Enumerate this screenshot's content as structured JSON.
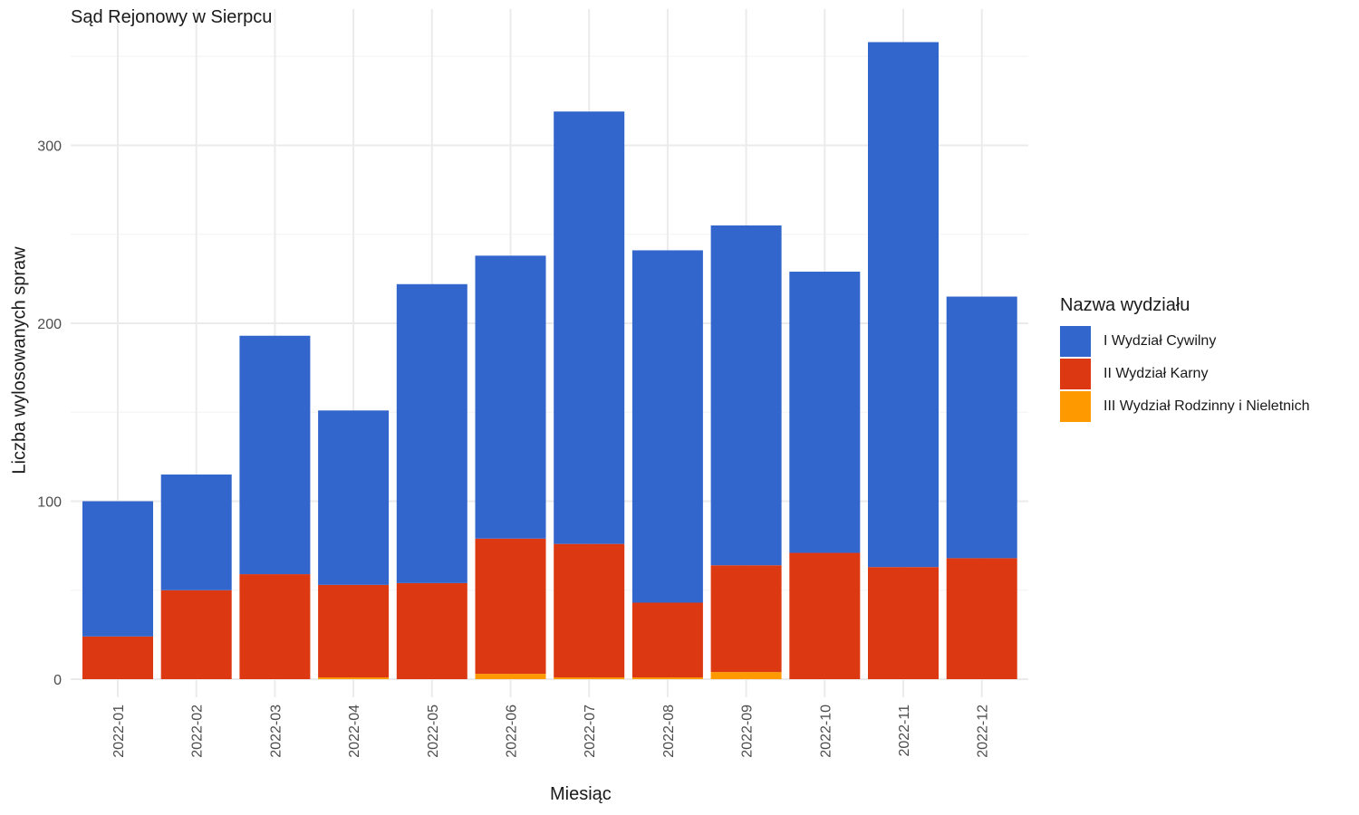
{
  "chart_data": {
    "type": "bar",
    "stacked": true,
    "title": "Sąd Rejonowy w Sierpcu",
    "xlabel": "Miesiąc",
    "ylabel": "Liczba wylosowanych spraw",
    "ylim": [
      0,
      360
    ],
    "yticks": [
      0,
      100,
      200,
      300
    ],
    "grid": true,
    "legend_position": "right",
    "legend_title": "Nazwa wydziału",
    "categories": [
      "2022-01",
      "2022-02",
      "2022-03",
      "2022-04",
      "2022-05",
      "2022-06",
      "2022-07",
      "2022-08",
      "2022-09",
      "2022-10",
      "2022-11",
      "2022-12"
    ],
    "series": [
      {
        "name": "I Wydział Cywilny",
        "color": "#3366CC",
        "values": [
          76,
          65,
          134,
          98,
          168,
          159,
          243,
          198,
          191,
          158,
          295,
          147
        ]
      },
      {
        "name": "II Wydział Karny",
        "color": "#DC3912",
        "values": [
          24,
          50,
          59,
          52,
          54,
          76,
          75,
          42,
          60,
          71,
          63,
          68
        ]
      },
      {
        "name": "III Wydział Rodzinny i Nieletnich",
        "color": "#FF9900",
        "values": [
          0,
          0,
          0,
          1,
          0,
          3,
          1,
          1,
          4,
          0,
          0,
          0
        ]
      }
    ]
  }
}
